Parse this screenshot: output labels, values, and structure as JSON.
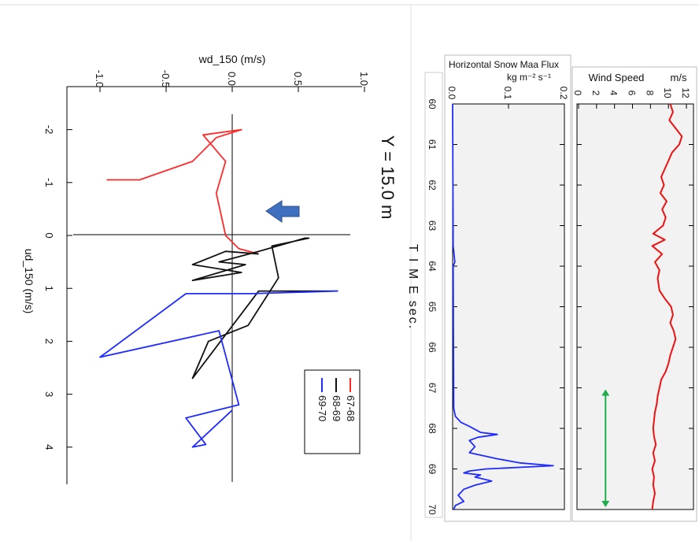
{
  "chart_data": [
    {
      "type": "line",
      "title": "Y = 15.0 m",
      "xlabel": "ud_150 (m/s)",
      "ylabel": "wd_150 (m/s)",
      "xlim": [
        -2.5,
        4.5
      ],
      "ylim": [
        -1.1,
        1.0
      ],
      "x_ticks": [
        "-2",
        "-1",
        "0",
        "1",
        "2",
        "3",
        "4"
      ],
      "y_ticks": [
        "-1.0",
        "-0.5",
        "0.0",
        "0.5",
        "1.0"
      ],
      "rotation": "rotated 90 degrees clockwise",
      "legend": {
        "placement": "lower-right",
        "entries": [
          "67-68",
          "68-69",
          "69-70"
        ]
      },
      "series": [
        {
          "name": "67-68",
          "color": "#ff2a2a",
          "points": [
            {
              "x": 0.35,
              "y": 0.2
            },
            {
              "x": 0.25,
              "y": 0.05
            },
            {
              "x": 0.0,
              "y": -0.05
            },
            {
              "x": -0.8,
              "y": -0.12
            },
            {
              "x": -1.4,
              "y": -0.05
            },
            {
              "x": -1.9,
              "y": -0.22
            },
            {
              "x": -2.0,
              "y": 0.07
            },
            {
              "x": -1.85,
              "y": -0.12
            },
            {
              "x": -1.4,
              "y": -0.3
            },
            {
              "x": -1.05,
              "y": -0.7
            },
            {
              "x": -1.05,
              "y": -0.95
            }
          ]
        },
        {
          "name": "68-69",
          "color": "#111111",
          "points": [
            {
              "x": 0.35,
              "y": 0.2
            },
            {
              "x": 0.3,
              "y": -0.05
            },
            {
              "x": 0.55,
              "y": -0.3
            },
            {
              "x": 0.7,
              "y": 0.07
            },
            {
              "x": 0.85,
              "y": -0.3
            },
            {
              "x": 0.55,
              "y": 0.1
            },
            {
              "x": 0.5,
              "y": -0.1
            },
            {
              "x": 0.3,
              "y": 0.2
            },
            {
              "x": 0.05,
              "y": 0.55
            },
            {
              "x": 0.05,
              "y": 0.58
            },
            {
              "x": 0.2,
              "y": 0.3
            },
            {
              "x": 0.8,
              "y": 0.35
            },
            {
              "x": 1.7,
              "y": 0.12
            },
            {
              "x": 2.0,
              "y": -0.18
            },
            {
              "x": 2.7,
              "y": -0.3
            },
            {
              "x": 1.05,
              "y": 0.2
            },
            {
              "x": 1.05,
              "y": 0.8
            }
          ]
        },
        {
          "name": "69-70",
          "color": "#1f2bff",
          "points": [
            {
              "x": 1.05,
              "y": 0.8
            },
            {
              "x": 1.1,
              "y": 0.15
            },
            {
              "x": 1.1,
              "y": -0.35
            },
            {
              "x": 2.3,
              "y": -1.0
            },
            {
              "x": 1.8,
              "y": -0.1
            },
            {
              "x": 3.2,
              "y": 0.05
            },
            {
              "x": 3.45,
              "y": -0.35
            },
            {
              "x": 3.95,
              "y": -0.2
            },
            {
              "x": 4.0,
              "y": -0.3
            },
            {
              "x": 3.3,
              "y": 0.0
            }
          ]
        }
      ]
    },
    {
      "type": "line",
      "title": "Horizontal Snow Maa Flux",
      "ylabel": "kg m⁻² s⁻¹",
      "xlabel": "T I M E   sec.",
      "xlim": [
        60,
        70
      ],
      "ylim": [
        0,
        0.2
      ],
      "x_ticks": [
        "60",
        "61",
        "62",
        "63",
        "64",
        "65",
        "66",
        "67",
        "68",
        "69",
        "70"
      ],
      "y_ticks": [
        "0.0",
        "0.1",
        "0.2"
      ],
      "rotation": "rotated 90 degrees clockwise",
      "series": [
        {
          "color": "#1f2bff",
          "points": [
            {
              "x": 60.0,
              "y": 0.0
            },
            {
              "x": 63.5,
              "y": 0.001
            },
            {
              "x": 63.9,
              "y": 0.004
            },
            {
              "x": 64.0,
              "y": 0.001
            },
            {
              "x": 67.5,
              "y": 0.002
            },
            {
              "x": 67.7,
              "y": 0.005
            },
            {
              "x": 67.85,
              "y": 0.015
            },
            {
              "x": 67.95,
              "y": 0.03
            },
            {
              "x": 68.1,
              "y": 0.05
            },
            {
              "x": 68.15,
              "y": 0.08
            },
            {
              "x": 68.22,
              "y": 0.045
            },
            {
              "x": 68.3,
              "y": 0.03
            },
            {
              "x": 68.45,
              "y": 0.04
            },
            {
              "x": 68.6,
              "y": 0.03
            },
            {
              "x": 68.75,
              "y": 0.08
            },
            {
              "x": 68.85,
              "y": 0.12
            },
            {
              "x": 68.92,
              "y": 0.18
            },
            {
              "x": 69.0,
              "y": 0.06
            },
            {
              "x": 69.05,
              "y": 0.03
            },
            {
              "x": 69.1,
              "y": 0.02
            },
            {
              "x": 69.15,
              "y": 0.05
            },
            {
              "x": 69.2,
              "y": 0.04
            },
            {
              "x": 69.3,
              "y": 0.07
            },
            {
              "x": 69.4,
              "y": 0.04
            },
            {
              "x": 69.5,
              "y": 0.02
            },
            {
              "x": 69.65,
              "y": 0.01
            },
            {
              "x": 69.8,
              "y": 0.02
            },
            {
              "x": 69.9,
              "y": 0.005
            },
            {
              "x": 70.0,
              "y": 0.002
            }
          ]
        }
      ]
    },
    {
      "type": "line",
      "title": "Wind Speed",
      "ylabel": "m/s",
      "xlim": [
        60,
        70
      ],
      "ylim": [
        0,
        12
      ],
      "x_ticks": [],
      "y_ticks": [
        "0",
        "2",
        "4",
        "6",
        "8",
        "10",
        "12"
      ],
      "rotation": "rotated 90 degrees clockwise",
      "annotation": "green double-headed arrow spanning 67 to 70 sec",
      "series": [
        {
          "color": "#ee1111",
          "points": [
            {
              "x": 60.0,
              "y": 10.2
            },
            {
              "x": 60.2,
              "y": 10.5
            },
            {
              "x": 60.4,
              "y": 10.1
            },
            {
              "x": 60.6,
              "y": 10.8
            },
            {
              "x": 60.8,
              "y": 11.5
            },
            {
              "x": 61.0,
              "y": 11.2
            },
            {
              "x": 61.2,
              "y": 10.4
            },
            {
              "x": 61.4,
              "y": 10.0
            },
            {
              "x": 61.6,
              "y": 9.6
            },
            {
              "x": 61.8,
              "y": 9.2
            },
            {
              "x": 62.0,
              "y": 9.5
            },
            {
              "x": 62.2,
              "y": 9.1
            },
            {
              "x": 62.4,
              "y": 9.8
            },
            {
              "x": 62.6,
              "y": 9.3
            },
            {
              "x": 62.8,
              "y": 9.7
            },
            {
              "x": 63.0,
              "y": 9.4
            },
            {
              "x": 63.2,
              "y": 8.3
            },
            {
              "x": 63.35,
              "y": 9.6
            },
            {
              "x": 63.5,
              "y": 8.2
            },
            {
              "x": 63.7,
              "y": 9.3
            },
            {
              "x": 63.9,
              "y": 8.5
            },
            {
              "x": 64.1,
              "y": 9.0
            },
            {
              "x": 64.3,
              "y": 8.8
            },
            {
              "x": 64.6,
              "y": 9.0
            },
            {
              "x": 64.8,
              "y": 9.6
            },
            {
              "x": 65.0,
              "y": 10.3
            },
            {
              "x": 65.2,
              "y": 10.5
            },
            {
              "x": 65.4,
              "y": 10.2
            },
            {
              "x": 65.6,
              "y": 10.6
            },
            {
              "x": 65.8,
              "y": 10.8
            },
            {
              "x": 66.0,
              "y": 10.5
            },
            {
              "x": 66.2,
              "y": 10.2
            },
            {
              "x": 66.4,
              "y": 10.0
            },
            {
              "x": 66.6,
              "y": 9.7
            },
            {
              "x": 66.8,
              "y": 9.2
            },
            {
              "x": 67.0,
              "y": 9.0
            },
            {
              "x": 67.2,
              "y": 8.8
            },
            {
              "x": 67.4,
              "y": 8.7
            },
            {
              "x": 67.6,
              "y": 8.5
            },
            {
              "x": 67.8,
              "y": 8.4
            },
            {
              "x": 68.0,
              "y": 8.3
            },
            {
              "x": 68.2,
              "y": 8.4
            },
            {
              "x": 68.4,
              "y": 8.6
            },
            {
              "x": 68.6,
              "y": 8.3
            },
            {
              "x": 68.8,
              "y": 8.5
            },
            {
              "x": 69.0,
              "y": 8.2
            },
            {
              "x": 69.2,
              "y": 8.4
            },
            {
              "x": 69.4,
              "y": 8.3
            },
            {
              "x": 69.6,
              "y": 8.5
            },
            {
              "x": 69.8,
              "y": 8.3
            },
            {
              "x": 70.0,
              "y": 8.2
            }
          ]
        }
      ]
    }
  ]
}
